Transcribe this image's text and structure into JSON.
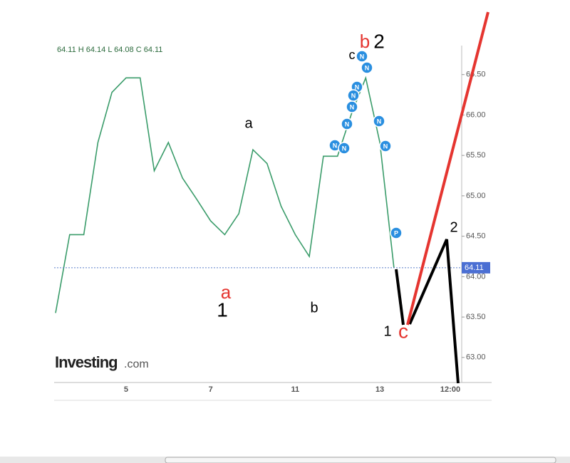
{
  "chart_data": {
    "type": "line",
    "header": "64.11  H 64.14  L 64.08  C 64.11",
    "categories": [
      null,
      null,
      null,
      null,
      null,
      "5",
      null,
      null,
      null,
      null,
      null,
      "7",
      null,
      null,
      null,
      null,
      null,
      "11",
      null,
      null,
      null,
      null,
      null,
      "13",
      null,
      null,
      null,
      null,
      "12:00"
    ],
    "values": [
      63.55,
      64.52,
      64.52,
      65.66,
      66.28,
      66.46,
      66.46,
      65.31,
      65.66,
      65.22,
      64.96,
      64.69,
      64.52,
      64.78,
      65.57,
      65.4,
      64.87,
      64.52,
      64.25,
      65.49,
      65.49,
      66.02,
      66.46,
      65.66,
      64.11,
      null,
      null,
      null,
      null
    ],
    "color": "#3a9c6a",
    "last_price": 64.11,
    "ylim": [
      62.69,
      66.85
    ],
    "yticks": [
      {
        "value": 63,
        "label": "63.00"
      },
      {
        "value": 63.5,
        "label": "63.50"
      },
      {
        "value": 64,
        "label": "64.00"
      },
      {
        "value": 64.5,
        "label": "64.50"
      },
      {
        "value": 65,
        "label": "65.00"
      },
      {
        "value": 65.5,
        "label": "65.50"
      },
      {
        "value": 66,
        "label": "66.00"
      },
      {
        "value": 66.5,
        "label": "66.50"
      }
    ]
  },
  "annotations": [
    "b",
    "2",
    "c",
    "a",
    "a",
    "1",
    "b",
    "1",
    "c",
    "2"
  ],
  "markers": [
    "N",
    "N",
    "N",
    "N",
    "N",
    "N",
    "N",
    "N",
    "N",
    "N",
    "P"
  ],
  "logo": {
    "brand": "Investing",
    "suffix": ".com"
  }
}
